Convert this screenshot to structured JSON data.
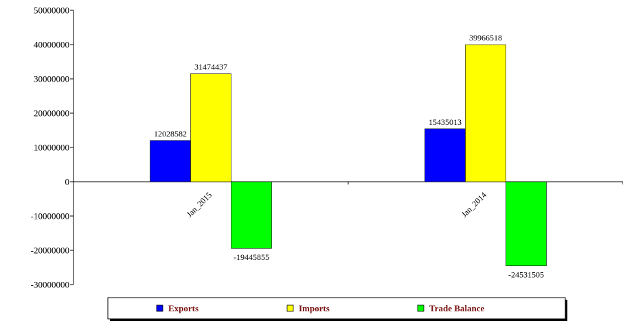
{
  "chart_data": {
    "type": "bar",
    "categories": [
      "Jan_2015",
      "Jan_2014"
    ],
    "series": [
      {
        "name": "Exports",
        "values": [
          12028582,
          15435013
        ],
        "color": "#0000ff"
      },
      {
        "name": "Imports",
        "values": [
          31474437,
          39966518
        ],
        "color": "#ffff00"
      },
      {
        "name": "Trade Balance",
        "values": [
          -19445855,
          -24531505
        ],
        "color": "#00ff00"
      }
    ],
    "data_labels": [
      [
        "12028582",
        "31474437",
        "-19445855"
      ],
      [
        "15435013",
        "39966518",
        "-24531505"
      ]
    ],
    "ylim": [
      -30000000,
      50000000
    ],
    "yticks": [
      50000000,
      40000000,
      30000000,
      20000000,
      10000000,
      0,
      -10000000,
      -20000000,
      -30000000
    ],
    "ytick_labels": [
      "50000000",
      "40000000",
      "30000000",
      "20000000",
      "10000000",
      "0",
      "-10000000",
      "-20000000",
      "-30000000"
    ],
    "grid": false,
    "legend_position": "bottom",
    "title": "",
    "xlabel": "",
    "ylabel": ""
  }
}
